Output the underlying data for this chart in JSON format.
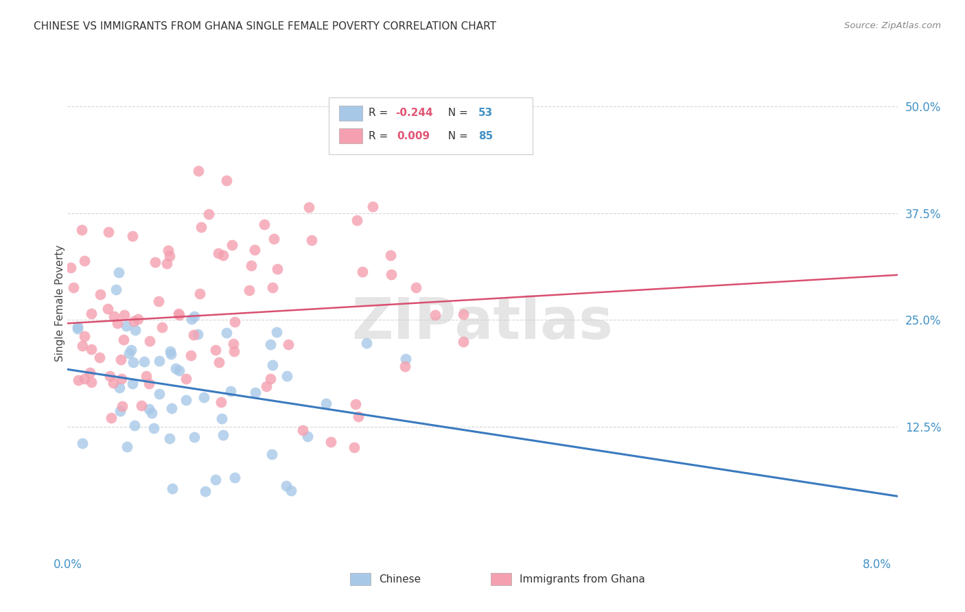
{
  "title": "CHINESE VS IMMIGRANTS FROM GHANA SINGLE FEMALE POVERTY CORRELATION CHART",
  "source": "Source: ZipAtlas.com",
  "ylabel": "Single Female Poverty",
  "color_chinese": "#a8c8e8",
  "color_ghana": "#f4a0b0",
  "color_line_chinese": "#3a7abf",
  "color_line_ghana": "#d94f70",
  "background_color": "#ffffff",
  "grid_color": "#cccccc",
  "legend_r_chinese": "-0.244",
  "legend_n_chinese": "53",
  "legend_r_ghana": "0.009",
  "legend_n_ghana": "85",
  "xlim": [
    0.0,
    0.082
  ],
  "ylim": [
    -0.02,
    0.56
  ],
  "ytick_vals": [
    0.0,
    0.125,
    0.25,
    0.375,
    0.5
  ],
  "ytick_labels": [
    "",
    "12.5%",
    "25.0%",
    "37.5%",
    "50.0%"
  ],
  "xtick_vals": [
    0.0,
    0.08
  ],
  "xtick_labels": [
    "0.0%",
    "8.0%"
  ],
  "n_chinese": 53,
  "n_ghana": 85
}
